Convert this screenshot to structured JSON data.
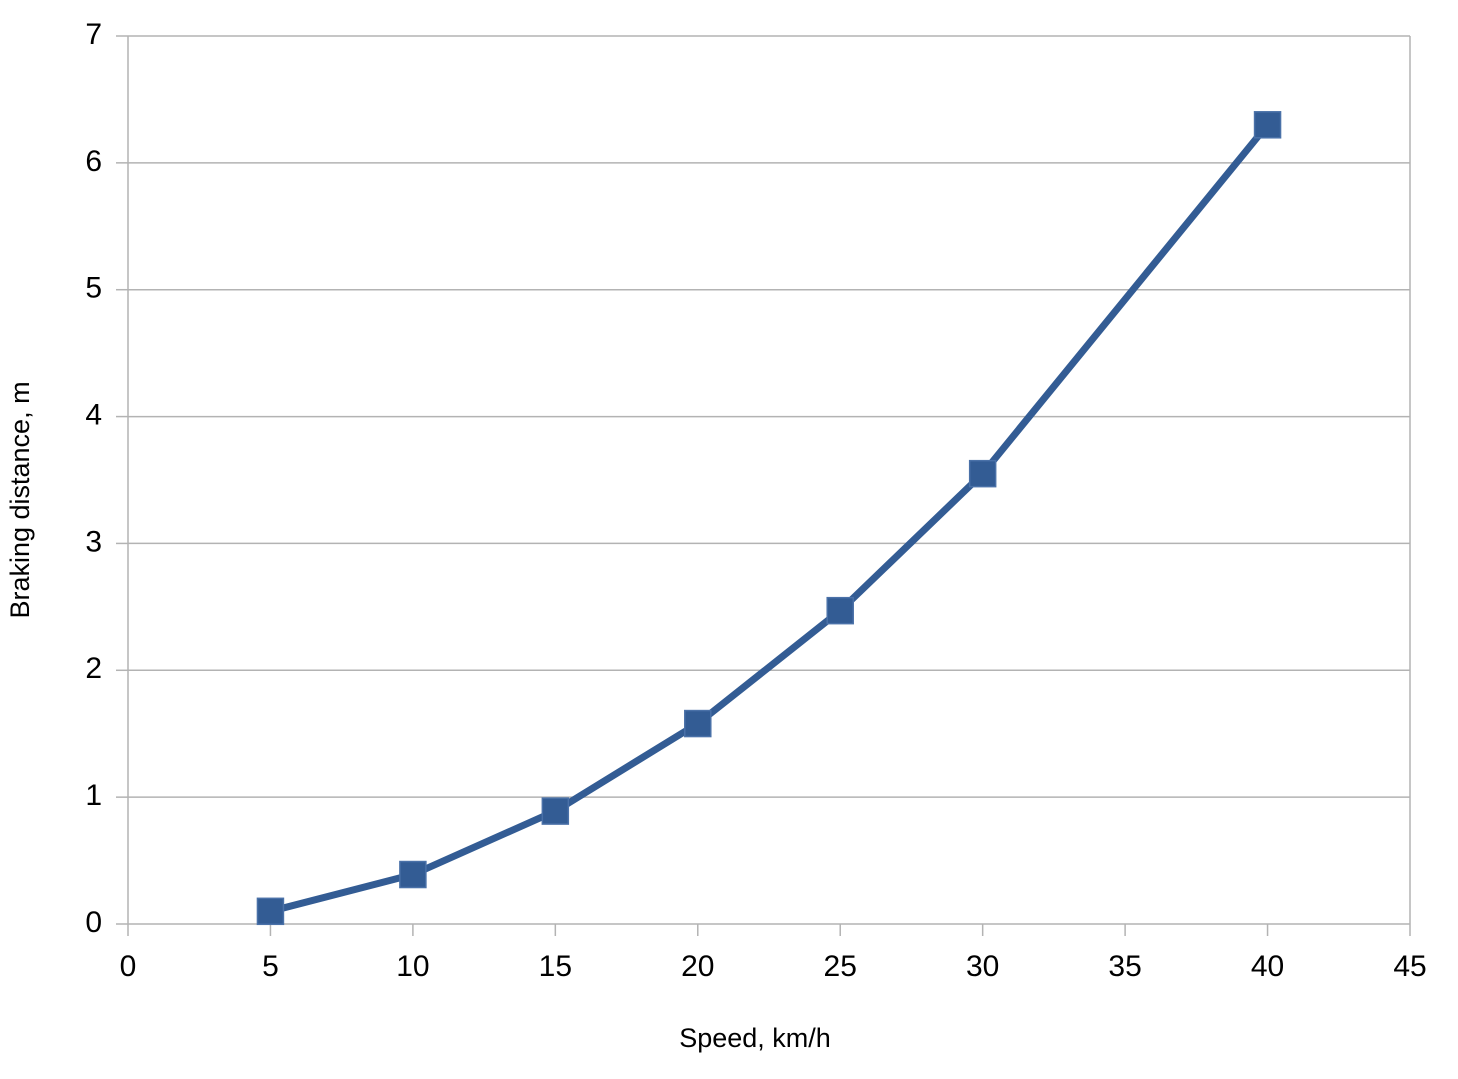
{
  "chart_data": {
    "type": "line",
    "x_label": "Speed, km/h",
    "y_label": "Braking distance, m",
    "series": [
      {
        "name": "Braking distance",
        "color": "#335c94",
        "x": [
          5,
          10,
          15,
          20,
          25,
          30,
          40
        ],
        "values": [
          0.1,
          0.39,
          0.89,
          1.58,
          2.47,
          3.55,
          6.3
        ]
      }
    ],
    "xlim": [
      0,
      45
    ],
    "xticks": [
      0,
      5,
      10,
      15,
      20,
      25,
      30,
      35,
      40,
      45
    ],
    "ylim": [
      0,
      7
    ],
    "yticks": [
      0,
      1,
      2,
      3,
      4,
      5,
      6,
      7
    ],
    "grid": true,
    "marker": "square"
  }
}
